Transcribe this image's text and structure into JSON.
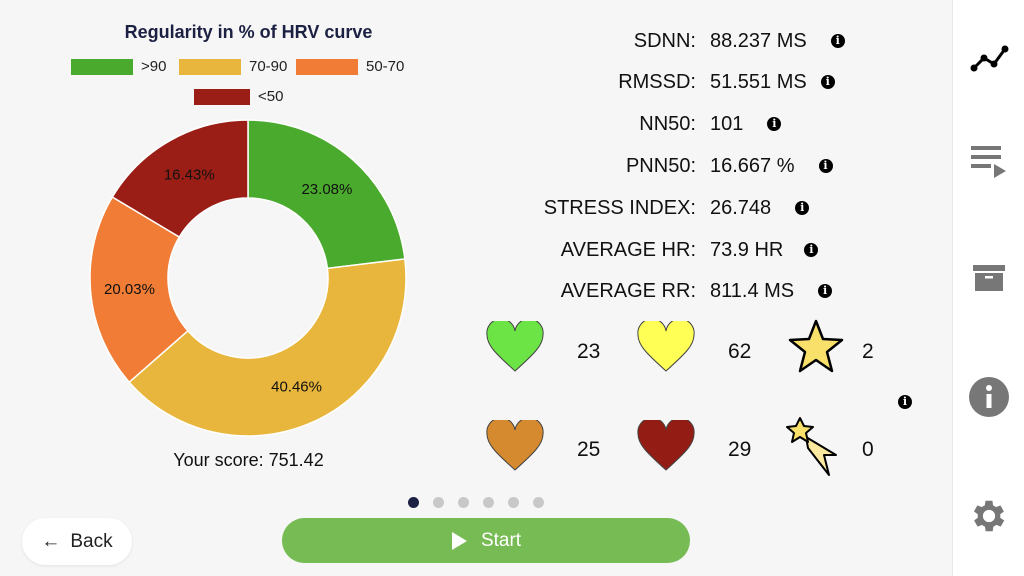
{
  "chart_data": {
    "type": "pie",
    "title": "Regularity in % of HRV curve",
    "categories": [
      ">90",
      "70-90",
      "50-70",
      "<50"
    ],
    "values": [
      23.08,
      40.46,
      20.03,
      16.43
    ],
    "labels": [
      "23.08%",
      "40.46%",
      "20.03%",
      "16.43%"
    ],
    "colors": [
      "#4aaa2e",
      "#e8b63c",
      "#f07c35",
      "#9b1e16"
    ],
    "donut": true,
    "legend": "top"
  },
  "score": "Your score: 751.42",
  "metrics": [
    {
      "label": "SDNN:",
      "value": "88.237 MS"
    },
    {
      "label": "RMSSD:",
      "value": "51.551 MS"
    },
    {
      "label": "NN50:",
      "value": "101"
    },
    {
      "label": "PNN50:",
      "value": "16.667 %"
    },
    {
      "label": "STRESS INDEX:",
      "value": "26.748"
    },
    {
      "label": "AVERAGE HR:",
      "value": "73.9 HR"
    },
    {
      "label": "AVERAGE RR:",
      "value": "811.4 MS"
    }
  ],
  "counts": {
    "green_heart": "23",
    "yellow_heart": "62",
    "star": "2",
    "orange_heart": "25",
    "red_heart": "29",
    "shooting_star": "0"
  },
  "info_glyph": "i",
  "pagination": {
    "pages": 6,
    "active": 1
  },
  "buttons": {
    "back": "Back",
    "back_arrow": "←",
    "start": "Start"
  }
}
